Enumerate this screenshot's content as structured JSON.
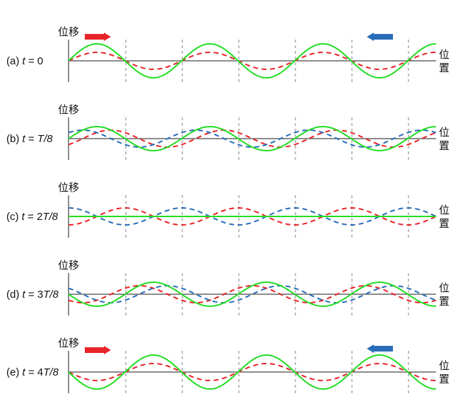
{
  "axis_labels": {
    "displacement": "位移",
    "position_top": "位",
    "position_bottom": "置"
  },
  "panels": [
    {
      "label_pre": "(a) ",
      "label_var": "t",
      "label_eq": " = ",
      "label_num": "0",
      "label_den": "",
      "phase_eighths": 0,
      "arrows": true
    },
    {
      "label_pre": "(b) ",
      "label_var": "t",
      "label_eq": " = ",
      "label_num": "",
      "label_den": "T/8",
      "phase_eighths": 1,
      "arrows": false
    },
    {
      "label_pre": "(c) ",
      "label_var": "t",
      "label_eq": " = ",
      "label_num": "2",
      "label_den": "T/8",
      "phase_eighths": 2,
      "arrows": false
    },
    {
      "label_pre": "(d) ",
      "label_var": "t",
      "label_eq": " = ",
      "label_num": "3",
      "label_den": "T/8",
      "phase_eighths": 3,
      "arrows": false
    },
    {
      "label_pre": "(e) ",
      "label_var": "t",
      "label_eq": " = ",
      "label_num": "4",
      "label_den": "T/8",
      "phase_eighths": 4,
      "arrows": true
    }
  ],
  "colors": {
    "right_wave": "#e8242a",
    "left_wave": "#2a6db8",
    "sum_wave": "#22dd22",
    "axis": "#666666",
    "gridline": "#aaaaaa"
  }
}
